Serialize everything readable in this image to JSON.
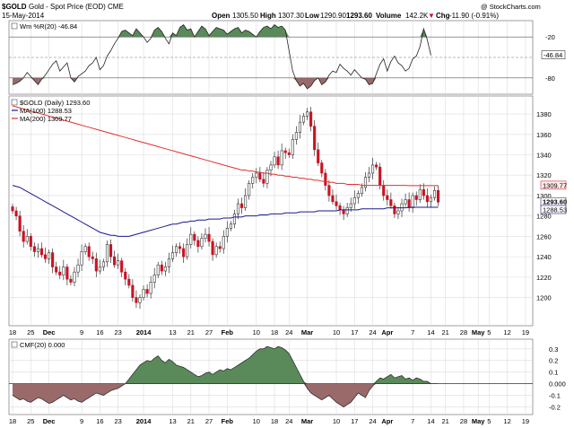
{
  "header": {
    "symbol": "$GOLD",
    "description": "Gold - Spot Price (EOD) CME",
    "date": "15-May-2014",
    "open_label": "Open",
    "open": "1305.50",
    "high_label": "High",
    "high": "1307.30",
    "low_label": "Low",
    "low": "1290.90",
    "close_value": "1293.60",
    "volume_label": "Volume",
    "volume": "142.2K",
    "chg_label": "Chg",
    "chg": "-11.90 (-0.91%)",
    "chg_arrow": "▼",
    "watermark": "@ StockCharts.com"
  },
  "colors": {
    "up": "#ffffff",
    "down": "#cc1122",
    "ma100": "#1a1a8a",
    "ma200": "#e03030",
    "pos_fill": "#5a8a5a",
    "neg_fill": "#9a6a6a"
  },
  "chart_data": [
    {
      "type": "line",
      "panel": "top",
      "legend": "Wm %R(20) -46.84",
      "ylim": [
        -100,
        0
      ],
      "levels": [
        "-20",
        "-80"
      ],
      "current_label": "-46.84",
      "values": [
        -90,
        -88,
        -85,
        -80,
        -72,
        -78,
        -84,
        -90,
        -82,
        -76,
        -68,
        -60,
        -55,
        -70,
        -64,
        -58,
        -80,
        -86,
        -78,
        -74,
        -70,
        -62,
        -58,
        -50,
        -68,
        -62,
        -48,
        -40,
        -30,
        -22,
        -12,
        -10,
        -14,
        -18,
        -8,
        -14,
        -20,
        -28,
        -22,
        -10,
        -6,
        -12,
        -22,
        -30,
        -14,
        -18,
        -6,
        -2,
        -10,
        -8,
        -20,
        -12,
        -4,
        -8,
        -18,
        -12,
        -6,
        -8,
        -10,
        -16,
        -12,
        -8,
        -6,
        -14,
        -10,
        -12,
        -16,
        -20,
        -12,
        -6,
        -4,
        -8,
        -2,
        -6,
        -4,
        -10,
        -40,
        -70,
        -84,
        -92,
        -88,
        -96,
        -92,
        -84,
        -80,
        -90,
        -86,
        -76,
        -70,
        -72,
        -60,
        -66,
        -70,
        -76,
        -68,
        -74,
        -80,
        -82,
        -90,
        -88,
        -74,
        -60,
        -52,
        -70,
        -56,
        -48,
        -58,
        -62,
        -70,
        -66,
        -52,
        -48,
        -34,
        -8,
        -24,
        -46.84
      ]
    },
    {
      "type": "candlestick",
      "panel": "middle",
      "legend_price": "$GOLD (Daily) 1293.60",
      "legend_ma100": "MA(100) 1288.53",
      "legend_ma200": "MA(200) 1309.77",
      "ylim": [
        1175,
        1395
      ],
      "yticks": [
        "1200",
        "1220",
        "1240",
        "1260",
        "1280",
        "1300",
        "1320",
        "1340",
        "1360",
        "1380"
      ],
      "price_labels": [
        "1309.77",
        "1293.60",
        "1288.53"
      ],
      "price_values": [
        1309.77,
        1293.6,
        1288.53
      ],
      "close": [
        1285,
        1280,
        1265,
        1255,
        1260,
        1250,
        1245,
        1248,
        1242,
        1238,
        1244,
        1230,
        1225,
        1222,
        1230,
        1218,
        1215,
        1225,
        1232,
        1245,
        1250,
        1240,
        1238,
        1226,
        1230,
        1235,
        1252,
        1240,
        1232,
        1236,
        1225,
        1218,
        1212,
        1200,
        1195,
        1200,
        1208,
        1204,
        1215,
        1222,
        1232,
        1226,
        1230,
        1238,
        1244,
        1250,
        1248,
        1240,
        1252,
        1262,
        1256,
        1250,
        1258,
        1262,
        1255,
        1242,
        1250,
        1248,
        1260,
        1268,
        1272,
        1282,
        1292,
        1288,
        1300,
        1312,
        1318,
        1322,
        1316,
        1312,
        1325,
        1330,
        1338,
        1330,
        1344,
        1342,
        1340,
        1355,
        1362,
        1372,
        1378,
        1382,
        1368,
        1345,
        1332,
        1322,
        1310,
        1300,
        1294,
        1290,
        1286,
        1282,
        1288,
        1292,
        1298,
        1302,
        1308,
        1318,
        1322,
        1330,
        1328,
        1310,
        1300,
        1296,
        1290,
        1282,
        1285,
        1292,
        1296,
        1288,
        1300,
        1296,
        1306,
        1300,
        1294,
        1298,
        1305,
        1293.6
      ],
      "ma100": [
        1310,
        1309,
        1308,
        1306,
        1304,
        1302,
        1300,
        1298,
        1296,
        1294,
        1292,
        1290,
        1288,
        1286,
        1284,
        1282,
        1280,
        1278,
        1276,
        1274,
        1272,
        1270,
        1268,
        1266,
        1264,
        1263,
        1262,
        1261,
        1261,
        1260,
        1260,
        1260,
        1260,
        1261,
        1262,
        1263,
        1264,
        1265,
        1266,
        1267,
        1268,
        1269,
        1270,
        1271,
        1272,
        1272,
        1273,
        1274,
        1274,
        1275,
        1275,
        1276,
        1276,
        1276,
        1277,
        1277,
        1277,
        1277,
        1278,
        1278,
        1278,
        1279,
        1279,
        1279,
        1280,
        1280,
        1280,
        1280,
        1281,
        1281,
        1281,
        1282,
        1282,
        1282,
        1282,
        1283,
        1283,
        1283,
        1283,
        1284,
        1284,
        1284,
        1284,
        1284,
        1285,
        1285,
        1285,
        1285,
        1285,
        1285,
        1286,
        1286,
        1286,
        1286,
        1286,
        1286,
        1287,
        1287,
        1287,
        1287,
        1287,
        1287,
        1287,
        1288,
        1288,
        1288,
        1288,
        1288,
        1288,
        1288.5,
        1288.5,
        1288.5,
        1288.5,
        1288.5,
        1288.5,
        1288.53,
        1288.53,
        1288.53
      ],
      "ma200": [
        1388,
        1387,
        1386,
        1385,
        1384,
        1383,
        1382,
        1381,
        1380,
        1379,
        1378,
        1377,
        1376,
        1375,
        1374,
        1373,
        1372,
        1371,
        1370,
        1369,
        1368,
        1367,
        1366,
        1365,
        1364,
        1363,
        1362,
        1361,
        1360,
        1359,
        1358,
        1357,
        1356,
        1355,
        1354,
        1353,
        1352,
        1351,
        1350,
        1349,
        1348,
        1347,
        1346,
        1345,
        1344,
        1343,
        1342,
        1341,
        1340,
        1339,
        1338,
        1337,
        1336,
        1335,
        1334,
        1333,
        1332,
        1331,
        1330,
        1329,
        1328,
        1327,
        1326,
        1325,
        1325,
        1324,
        1324,
        1323,
        1323,
        1322,
        1322,
        1321,
        1321,
        1320,
        1320,
        1319,
        1319,
        1318,
        1318,
        1317,
        1317,
        1316,
        1316,
        1315,
        1315,
        1314,
        1314,
        1313,
        1313,
        1312,
        1312,
        1312,
        1311,
        1311,
        1311,
        1311,
        1310,
        1310,
        1310,
        1310,
        1310,
        1310,
        1310,
        1310,
        1310,
        1310,
        1310,
        1310,
        1310,
        1309.8,
        1309.8,
        1309.8,
        1309.8,
        1309.8,
        1309.8,
        1309.77,
        1309.77,
        1309.77
      ]
    },
    {
      "type": "area",
      "panel": "bottom",
      "legend": "CMF(20) 0.000",
      "ylim": [
        -0.25,
        0.36
      ],
      "yticks": [
        "0.3",
        "0.2",
        "0.1",
        "0.000",
        "-0.1",
        "-0.2"
      ],
      "ytick_values": [
        0.3,
        0.2,
        0.1,
        0.0,
        -0.1,
        -0.2
      ],
      "values": [
        -0.1,
        -0.12,
        -0.14,
        -0.13,
        -0.15,
        -0.16,
        -0.14,
        -0.12,
        -0.13,
        -0.15,
        -0.17,
        -0.16,
        -0.14,
        -0.12,
        -0.1,
        -0.12,
        -0.14,
        -0.13,
        -0.15,
        -0.16,
        -0.14,
        -0.12,
        -0.1,
        -0.08,
        -0.09,
        -0.1,
        -0.08,
        -0.06,
        -0.05,
        -0.04,
        -0.02,
        0.0,
        0.04,
        0.08,
        0.12,
        0.16,
        0.18,
        0.2,
        0.19,
        0.22,
        0.24,
        0.2,
        0.18,
        0.21,
        0.19,
        0.16,
        0.15,
        0.14,
        0.12,
        0.1,
        0.08,
        0.06,
        0.07,
        0.09,
        0.1,
        0.08,
        0.1,
        0.12,
        0.11,
        0.13,
        0.12,
        0.14,
        0.16,
        0.18,
        0.2,
        0.22,
        0.25,
        0.28,
        0.3,
        0.3,
        0.32,
        0.31,
        0.3,
        0.32,
        0.31,
        0.29,
        0.26,
        0.2,
        0.14,
        0.08,
        0.02,
        -0.04,
        -0.08,
        -0.1,
        -0.12,
        -0.14,
        -0.12,
        -0.1,
        -0.13,
        -0.16,
        -0.18,
        -0.2,
        -0.18,
        -0.16,
        -0.12,
        -0.08,
        -0.1,
        -0.12,
        -0.06,
        -0.02,
        0.02,
        0.05,
        0.04,
        0.06,
        0.08,
        0.05,
        0.06,
        0.07,
        0.04,
        0.05,
        0.03,
        0.05,
        0.04,
        0.02,
        0.02,
        0.0,
        0.0,
        0.0
      ]
    }
  ],
  "xaxis": {
    "labels": [
      {
        "t": "18",
        "i": 0
      },
      {
        "t": "25",
        "i": 5
      },
      {
        "t": "Dec",
        "i": 10,
        "b": true
      },
      {
        "t": "9",
        "i": 19
      },
      {
        "t": "16",
        "i": 24
      },
      {
        "t": "23",
        "i": 29
      },
      {
        "t": "2014",
        "i": 36,
        "b": true
      },
      {
        "t": "13",
        "i": 44
      },
      {
        "t": "21",
        "i": 49
      },
      {
        "t": "27",
        "i": 54
      },
      {
        "t": "Feb",
        "i": 59,
        "b": true
      },
      {
        "t": "10",
        "i": 67
      },
      {
        "t": "18",
        "i": 72
      },
      {
        "t": "24",
        "i": 76
      },
      {
        "t": "Mar",
        "i": 81,
        "b": true
      },
      {
        "t": "10",
        "i": 89
      },
      {
        "t": "17",
        "i": 94
      },
      {
        "t": "24",
        "i": 99
      },
      {
        "t": "Apr",
        "i": 103,
        "b": true
      },
      {
        "t": "7",
        "i": 110
      },
      {
        "t": "14",
        "i": 115
      },
      {
        "t": "21",
        "i": 119
      },
      {
        "t": "28",
        "i": 124
      },
      {
        "t": "May",
        "i": 128,
        "b": true
      },
      {
        "t": "5",
        "i": 131
      },
      {
        "t": "12",
        "i": 136
      },
      {
        "t": "19",
        "i": 141
      }
    ],
    "n_slots": 143
  }
}
